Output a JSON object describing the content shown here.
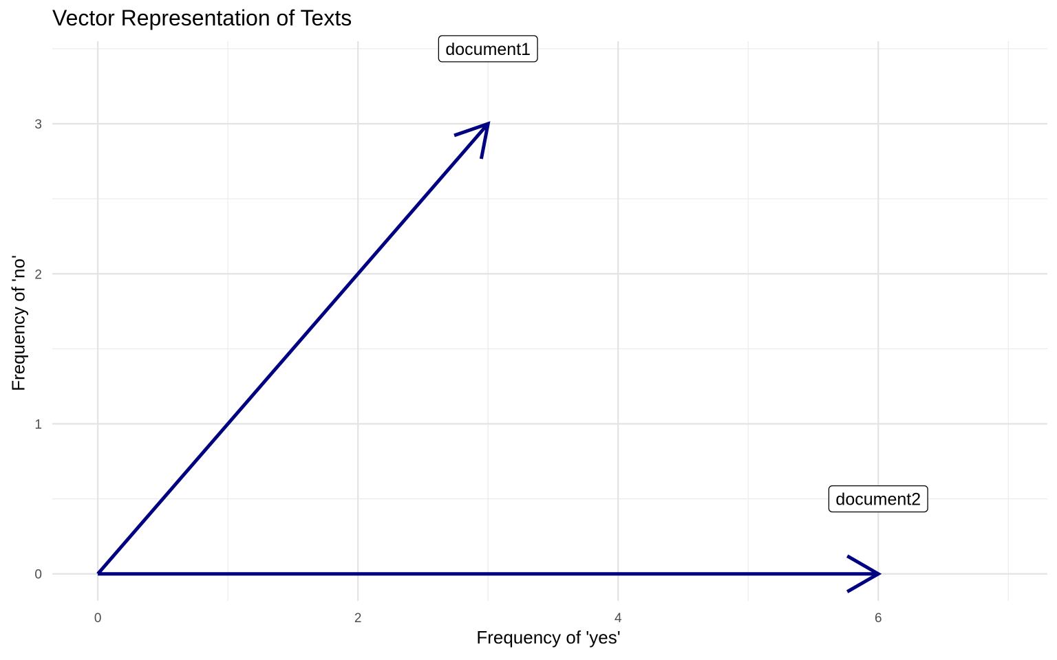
{
  "chart_data": {
    "type": "vector",
    "title": "Vector Representation of Texts",
    "xlabel": "Frequency of 'yes'",
    "ylabel": "Frequency of 'no'",
    "xlim": [
      -0.35,
      7.3
    ],
    "ylim": [
      -0.18,
      3.55
    ],
    "x_ticks": [
      0,
      2,
      4,
      6
    ],
    "y_ticks": [
      0,
      1,
      2,
      3
    ],
    "x_minor_grid": [
      1,
      3,
      5,
      7
    ],
    "y_minor_grid": [
      0.5,
      1.5,
      2.5,
      3.5
    ],
    "grid": true,
    "arrow_color": "#000080",
    "vectors": [
      {
        "label": "document1",
        "x0": 0,
        "y0": 0,
        "x": 3,
        "y": 3,
        "label_x": 3,
        "label_y": 3.5
      },
      {
        "label": "document2",
        "x0": 0,
        "y0": 0,
        "x": 6,
        "y": 0,
        "label_x": 6,
        "label_y": 0.5
      }
    ]
  }
}
